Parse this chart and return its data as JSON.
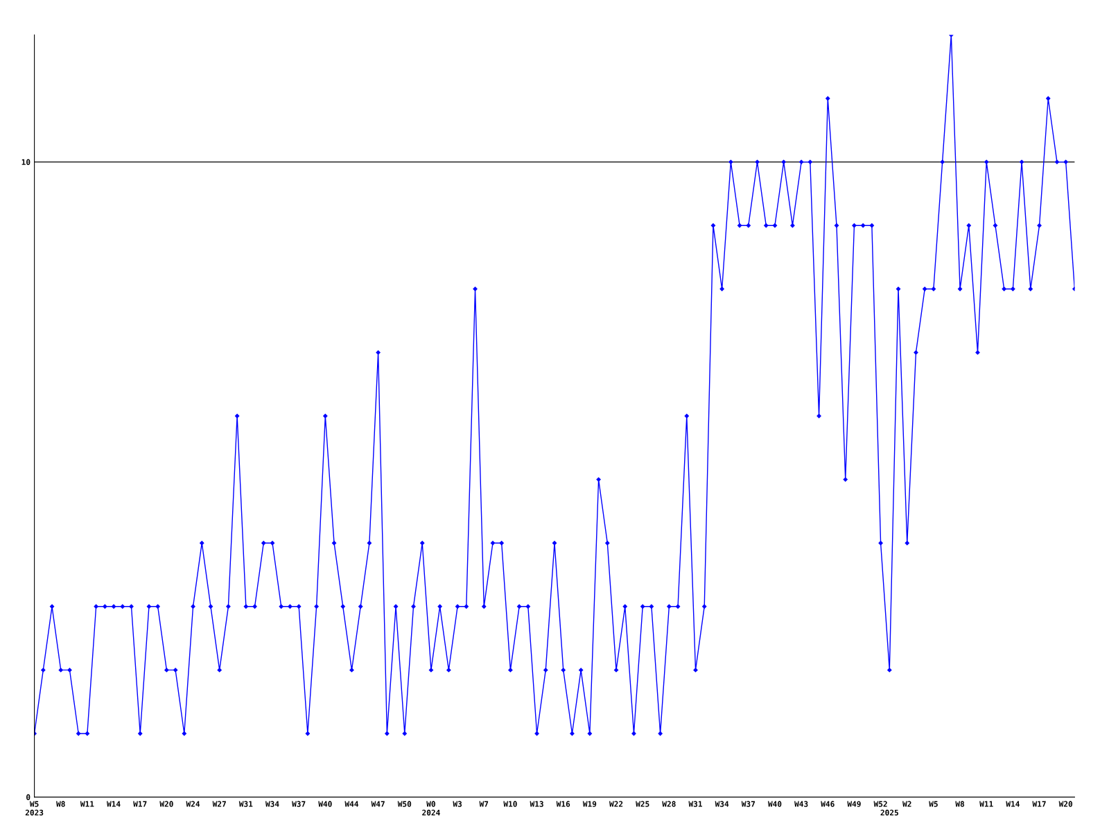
{
  "chart_data": {
    "type": "line",
    "categories": [
      "W5\n2023",
      null,
      null,
      "W8",
      null,
      null,
      "W11",
      null,
      null,
      "W14",
      null,
      null,
      "W17",
      null,
      null,
      "W20",
      null,
      null,
      "W24",
      null,
      null,
      "W27",
      null,
      null,
      "W31",
      null,
      null,
      "W34",
      null,
      null,
      "W37",
      null,
      null,
      "W40",
      null,
      null,
      "W44",
      null,
      null,
      "W47",
      null,
      null,
      "W50",
      null,
      null,
      "W0\n2024",
      null,
      null,
      "W3",
      null,
      null,
      "W7",
      null,
      null,
      "W10",
      null,
      null,
      "W13",
      null,
      null,
      "W16",
      null,
      null,
      "W19",
      null,
      null,
      "W22",
      null,
      null,
      "W25",
      null,
      null,
      "W28",
      null,
      null,
      "W31",
      null,
      null,
      "W34",
      null,
      null,
      "W37",
      null,
      null,
      "W40",
      null,
      null,
      "W43",
      null,
      null,
      "W46",
      null,
      null,
      "W49",
      null,
      null,
      "W52",
      "\n2025",
      null,
      "W2",
      null,
      null,
      "W5",
      null,
      null,
      "W8",
      null,
      null,
      "W11",
      null,
      null,
      "W14",
      null,
      null,
      "W17",
      null,
      null,
      "W20",
      null
    ],
    "series": [
      {
        "color": "#0000ff",
        "values": [
          1,
          2,
          3,
          2,
          2,
          1,
          1,
          3,
          3,
          3,
          3,
          3,
          1,
          3,
          3,
          2,
          2,
          1,
          3,
          4,
          3,
          2,
          3,
          6,
          3,
          3,
          4,
          4,
          3,
          3,
          3,
          1,
          3,
          6,
          4,
          3,
          2,
          3,
          4,
          7,
          1,
          3,
          1,
          3,
          4,
          2,
          3,
          2,
          3,
          3,
          8,
          3,
          4,
          4,
          2,
          3,
          3,
          1,
          2,
          4,
          2,
          1,
          2,
          1,
          5,
          4,
          2,
          3,
          1,
          3,
          3,
          1,
          3,
          3,
          6,
          2,
          3,
          9,
          8,
          10,
          9,
          9,
          10,
          9,
          9,
          10,
          9,
          10,
          10,
          6,
          11,
          9,
          5,
          9,
          9,
          9,
          4,
          2,
          8,
          4,
          7,
          8,
          8,
          10,
          12,
          8,
          9,
          7,
          10,
          9,
          8,
          8,
          10,
          8,
          9,
          11,
          10,
          10,
          8
        ]
      }
    ],
    "ylim": [
      0,
      12
    ],
    "yticks": [
      0,
      10
    ],
    "ref_lines": [
      {
        "axis": "y",
        "value": 10,
        "color": "#000000"
      }
    ],
    "marker": "diamond",
    "line_style": "solid",
    "grid": false,
    "legend": false
  }
}
